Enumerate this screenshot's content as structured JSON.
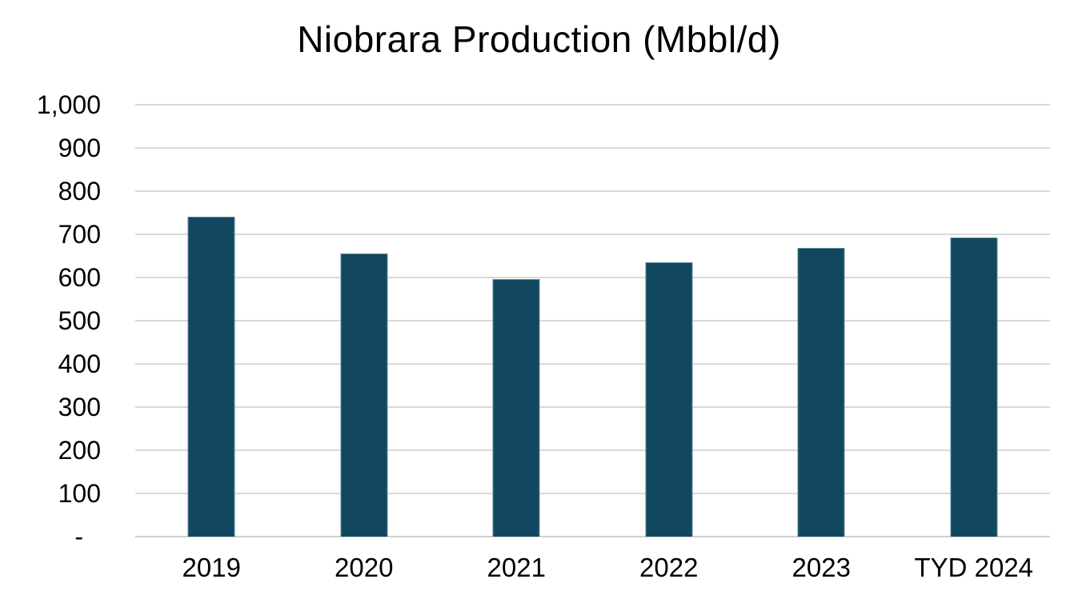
{
  "title": "Niobrara Production (Mbbl/d)",
  "colors": {
    "bar": "#12485f",
    "bar_border": "#88a8b8",
    "gridline": "#d9d9d9",
    "text": "#000000",
    "background": "#ffffff"
  },
  "chart_data": {
    "type": "bar",
    "title": "Niobrara Production (Mbbl/d)",
    "categories": [
      "2019",
      "2020",
      "2021",
      "2022",
      "2023",
      "TYD 2024"
    ],
    "values": [
      740,
      655,
      596,
      636,
      668,
      693
    ],
    "xlabel": "",
    "ylabel": "",
    "ylim": [
      0,
      1000
    ],
    "ytick_interval": 100,
    "ytick_labels": [
      "-",
      "100",
      "200",
      "300",
      "400",
      "500",
      "600",
      "700",
      "800",
      "900",
      "1,000"
    ],
    "grid": true,
    "legend": false,
    "bar_color": "#12485f"
  }
}
